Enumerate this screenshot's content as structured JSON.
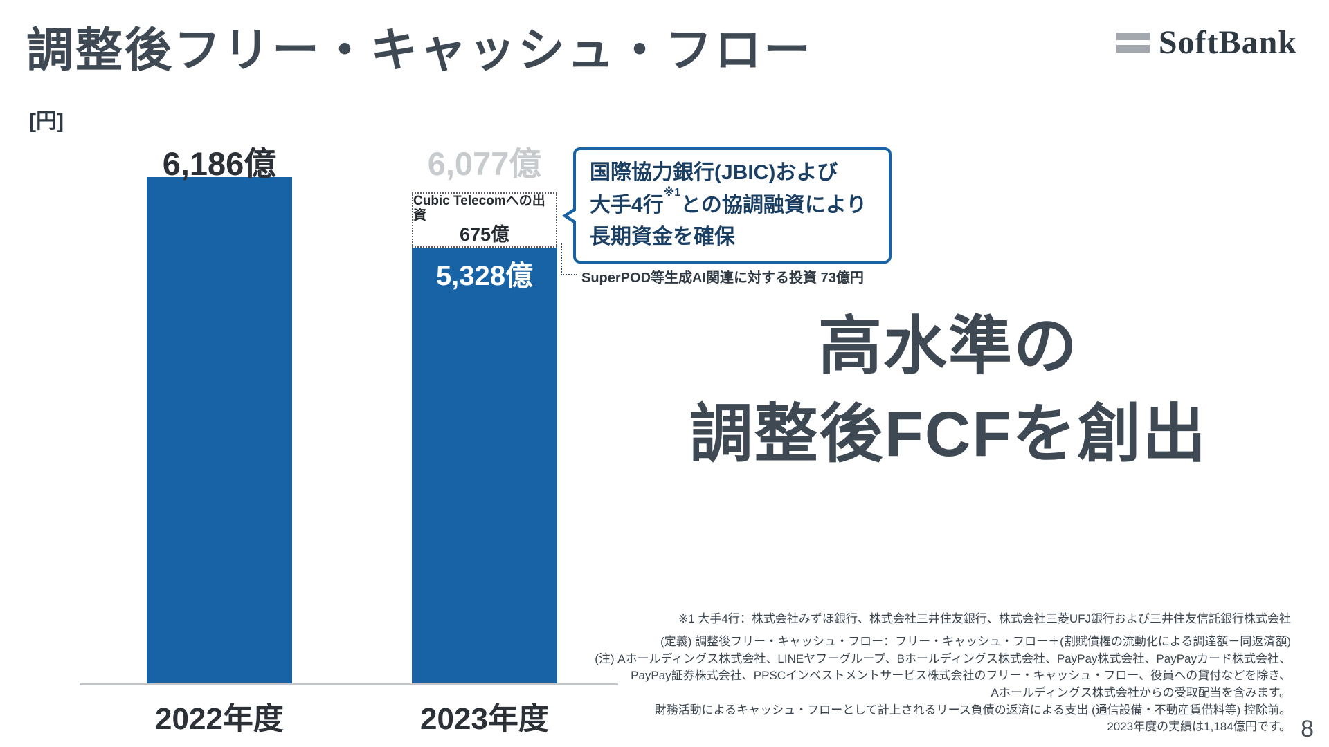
{
  "slide": {
    "title": "調整後フリー・キャッシュ・フロー",
    "unit_label": "[円]",
    "page_number": "8"
  },
  "logo": {
    "text": "SoftBank",
    "bar_color": "#a2a8ae"
  },
  "chart_data": {
    "type": "bar",
    "title": "調整後フリー・キャッシュ・フロー",
    "unit": "億円",
    "stacked": true,
    "grid": false,
    "legend": "none",
    "bar_color": "#1763a6",
    "categories": [
      "2022年度",
      "2023年度"
    ],
    "series": [
      {
        "name": "調整後フリー・キャッシュ・フロー",
        "values": [
          6186,
          5328
        ]
      },
      {
        "name": "Cubic Telecomへの出資",
        "values": [
          0,
          675
        ]
      }
    ],
    "totals": [
      6186,
      6077
    ],
    "total_labels": [
      "6,186億",
      "6,077億"
    ],
    "segment_labels": {
      "fcf_2023": "5,328億",
      "cubic_title": "Cubic Telecomへの出資",
      "cubic_value": "675億"
    },
    "ylim": [
      0,
      6500
    ]
  },
  "callout": {
    "border_color": "#1763a6",
    "line1": "国際協力銀行(JBIC)および",
    "line2_pre": "大手4行",
    "line2_sup": "※1",
    "line2_post": "との協調融資により",
    "line3": "長期資金を確保"
  },
  "annotation": {
    "superpod": "SuperPOD等生成AI関連に対する投資 73億円"
  },
  "message": {
    "line1": "高水準の",
    "line2": "調整後FCFを創出"
  },
  "footnotes": {
    "note1": "※1 大手4行：株式会社みずほ銀行、株式会社三井住友銀行、株式会社三菱UFJ銀行および三井住友信託銀行株式会社",
    "definition": "(定義) 調整後フリー・キャッシュ・フロー：フリー・キャッシュ・フロー＋(割賦債権の流動化による調達額－同返済額)",
    "note2a": "(注) Aホールディングス株式会社、LINEヤフーグループ、Bホールディングス株式会社、PayPay株式会社、PayPayカード株式会社、",
    "note2b": "PayPay証券株式会社、PPSCインベストメントサービス株式会社のフリー・キャッシュ・フロー、役員への貸付などを除き、",
    "note2c": "Aホールディングス株式会社からの受取配当を含みます。",
    "note2d": "財務活動によるキャッシュ・フローとして計上されるリース負債の返済による支出 (通信設備・不動産賃借料等) 控除前。",
    "note2e": "2023年度の実績は1,184億円です。"
  }
}
